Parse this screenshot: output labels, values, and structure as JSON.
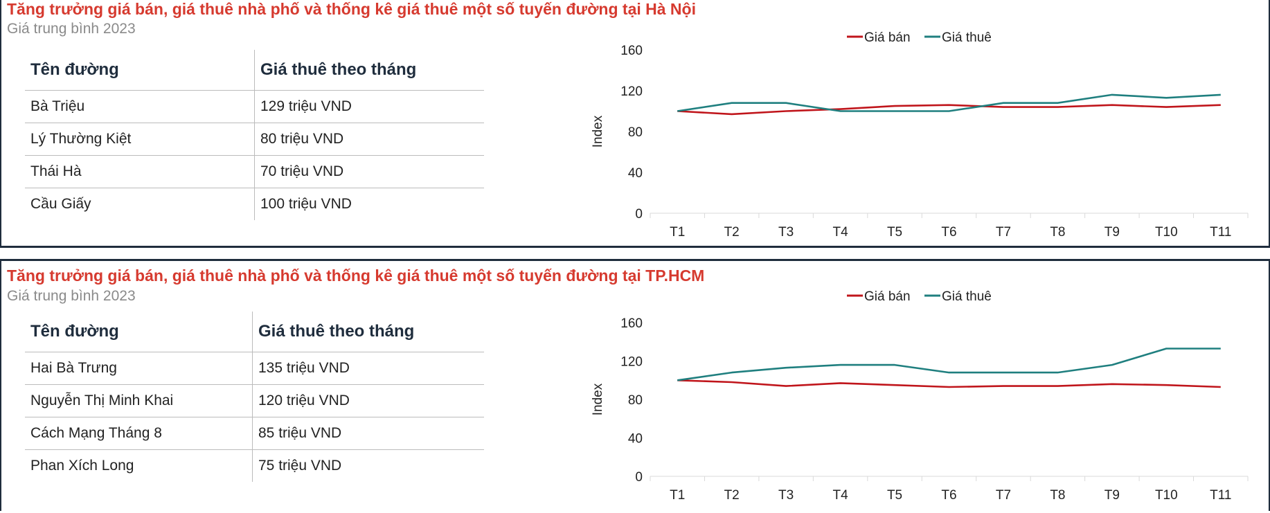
{
  "colors": {
    "title": "#d63a2f",
    "sale": "#c0151b",
    "rent": "#1f7f7f"
  },
  "panels": [
    {
      "title": "Tăng trưởng giá bán, giá thuê nhà phố và thống kê giá thuê một số tuyến đường tại Hà Nội",
      "subtitle": "Giá trung bình 2023",
      "table": {
        "headers": [
          "Tên đường",
          "Giá thuê theo tháng"
        ],
        "rows": [
          [
            "Bà Triệu",
            "129 triệu VND"
          ],
          [
            "Lý Thường Kiệt",
            "80 triệu VND"
          ],
          [
            "Thái Hà",
            "70 triệu VND"
          ],
          [
            "Cầu Giấy",
            "100 triệu VND"
          ]
        ]
      }
    },
    {
      "title": "Tăng trưởng giá bán, giá thuê nhà phố và thống kê giá thuê một số tuyến đường tại TP.HCM",
      "subtitle": "Giá trung bình 2023",
      "table": {
        "headers": [
          "Tên đường",
          "Giá thuê theo tháng"
        ],
        "rows": [
          [
            "Hai Bà Trưng",
            "135 triệu VND"
          ],
          [
            "Nguyễn Thị Minh Khai",
            "120 triệu VND"
          ],
          [
            "Cách Mạng Tháng 8",
            "85 triệu VND"
          ],
          [
            "Phan Xích Long",
            "75 triệu VND"
          ]
        ]
      }
    }
  ],
  "chart_data": [
    {
      "type": "line",
      "title": "",
      "xlabel": "",
      "ylabel": "Index",
      "ylim": [
        0,
        160
      ],
      "yticks": [
        0,
        40,
        80,
        120,
        160
      ],
      "legend": "top-center",
      "categories": [
        "T1",
        "T2",
        "T3",
        "T4",
        "T5",
        "T6",
        "T7",
        "T8",
        "T9",
        "T10",
        "T11"
      ],
      "series": [
        {
          "name": "Giá bán",
          "values": [
            100,
            97,
            100,
            102,
            105,
            106,
            104,
            104,
            106,
            104,
            106
          ]
        },
        {
          "name": "Giá thuê",
          "values": [
            100,
            108,
            108,
            100,
            100,
            100,
            108,
            108,
            116,
            113,
            116
          ]
        }
      ]
    },
    {
      "type": "line",
      "title": "",
      "xlabel": "",
      "ylabel": "Index",
      "ylim": [
        0,
        160
      ],
      "yticks": [
        0,
        40,
        80,
        120,
        160
      ],
      "legend": "top-center",
      "categories": [
        "T1",
        "T2",
        "T3",
        "T4",
        "T5",
        "T6",
        "T7",
        "T8",
        "T9",
        "T10",
        "T11"
      ],
      "series": [
        {
          "name": "Giá bán",
          "values": [
            100,
            98,
            94,
            97,
            95,
            93,
            94,
            94,
            96,
            95,
            93
          ]
        },
        {
          "name": "Giá thuê",
          "values": [
            100,
            108,
            113,
            116,
            116,
            108,
            108,
            108,
            116,
            133,
            133
          ]
        }
      ]
    }
  ]
}
